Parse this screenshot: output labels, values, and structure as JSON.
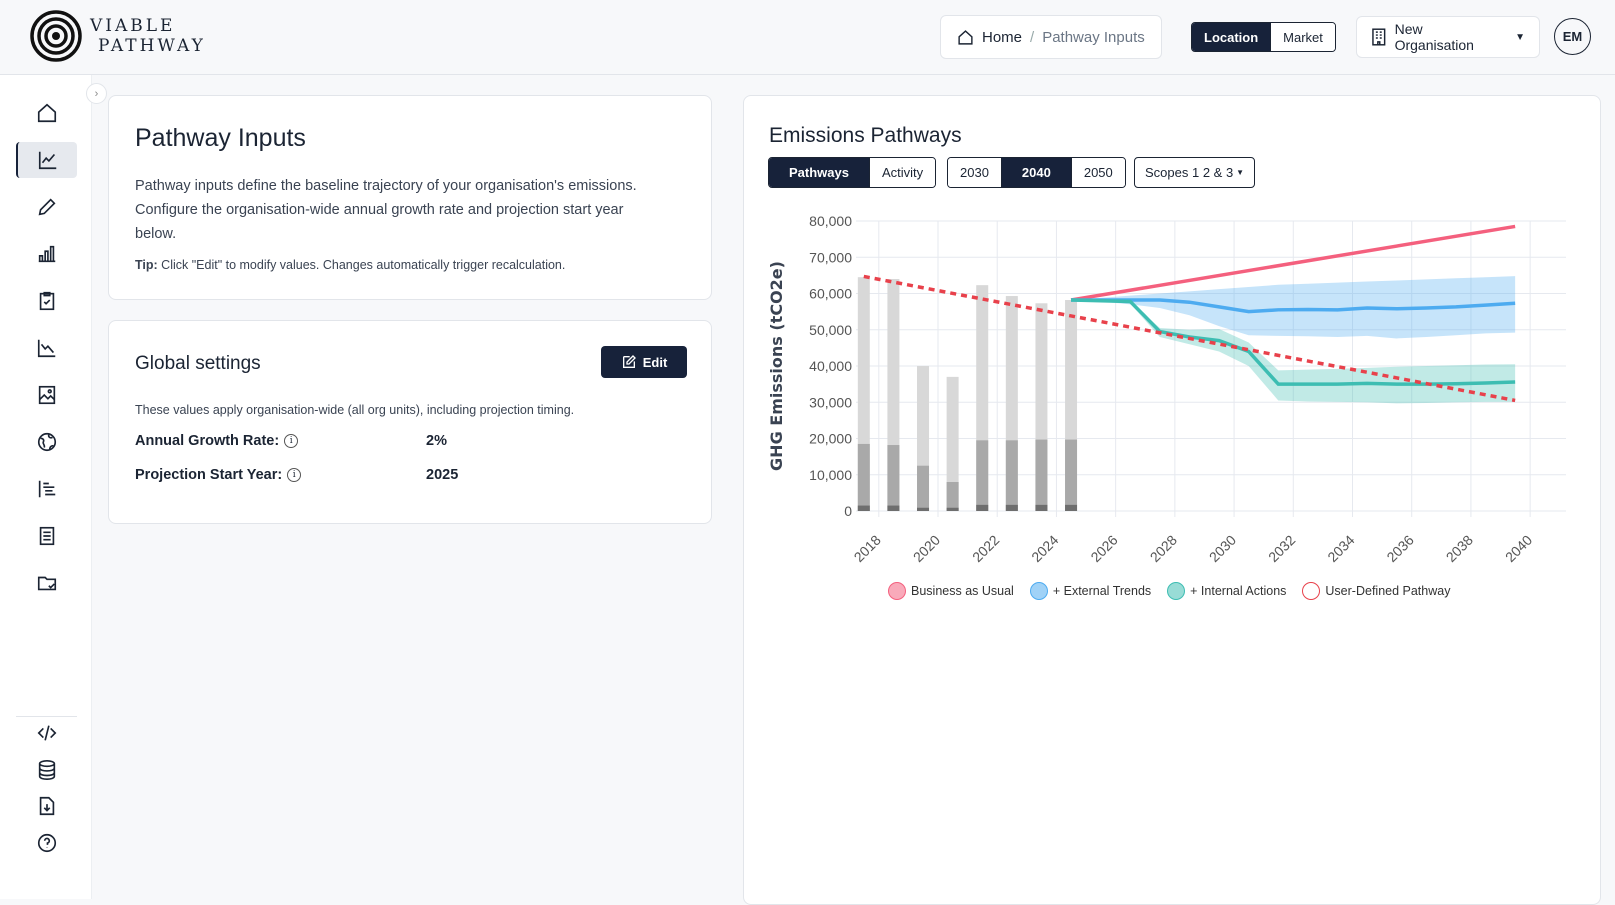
{
  "header": {
    "brand_line1": "VIABLE",
    "brand_line2": "PATHWAY",
    "breadcrumb": {
      "home": "Home",
      "current": "Pathway Inputs"
    },
    "basis_toggle": [
      "Location",
      "Market"
    ],
    "basis_active": "Location",
    "organisation": "New Organisation",
    "avatar_initials": "EM"
  },
  "sidebar": {
    "icons": [
      "home-icon",
      "line-chart-icon",
      "pencil-icon",
      "bar-chart-icon",
      "clipboard-check-icon",
      "trending-down-icon",
      "image-icon",
      "globe-icon",
      "list-indent-icon",
      "document-icon",
      "folder-check-icon",
      "code-icon",
      "database-icon",
      "file-download-icon",
      "help-icon"
    ],
    "active": "line-chart-icon"
  },
  "intro": {
    "title": "Pathway Inputs",
    "description": "Pathway inputs define the baseline trajectory of your organisation's emissions. Configure the organisation-wide annual growth rate and projection start year below.",
    "tip_label": "Tip:",
    "tip": " Click \"Edit\" to modify values. Changes automatically trigger recalculation."
  },
  "global": {
    "title": "Global settings",
    "edit_label": "Edit",
    "note": "These values apply organisation-wide (all org units), including projection timing.",
    "growth_label": "Annual Growth Rate:",
    "growth_value": "2%",
    "start_label": "Projection Start Year:",
    "start_value": "2025"
  },
  "chart_panel": {
    "title": "Emissions Pathways",
    "view_tabs": [
      "Pathways",
      "Activity"
    ],
    "view_active": "Pathways",
    "year_tabs": [
      "2030",
      "2040",
      "2050"
    ],
    "year_active": "2040",
    "scope_select": "Scopes 1 2 & 3"
  },
  "chart_data": {
    "type": "line",
    "title": "Emissions Pathways",
    "ylabel": "GHG Emissions (tCO2e)",
    "xlabel": "",
    "ylim": [
      0,
      80000
    ],
    "yticks": [
      "0",
      "10,000",
      "20,000",
      "30,000",
      "40,000",
      "50,000",
      "60,000",
      "70,000",
      "80,000"
    ],
    "x": [
      2018,
      2019,
      2020,
      2021,
      2022,
      2023,
      2024,
      2025,
      2026,
      2027,
      2028,
      2029,
      2030,
      2031,
      2032,
      2033,
      2034,
      2035,
      2036,
      2037,
      2038,
      2039,
      2040
    ],
    "xticks": [
      "2018",
      "2020",
      "2022",
      "2024",
      "2026",
      "2028",
      "2030",
      "2032",
      "2034",
      "2036",
      "2038",
      "2040"
    ],
    "historical_bars": {
      "years": [
        2018,
        2019,
        2020,
        2021,
        2022,
        2023,
        2024,
        2025
      ],
      "total": [
        64500,
        64000,
        40000,
        37000,
        62300,
        59300,
        57300,
        58200
      ],
      "scope2_and_1": [
        18500,
        18200,
        12500,
        8000,
        19500,
        19500,
        19700,
        19700
      ],
      "scope1": [
        1500,
        1500,
        900,
        900,
        1700,
        1700,
        1700,
        1700
      ]
    },
    "series": [
      {
        "name": "Business as Usual",
        "color": "#f4607e",
        "x": [
          2025,
          2040
        ],
        "values": [
          58200,
          78500
        ]
      },
      {
        "name": "+ External Trends",
        "color": "#4dabf0",
        "x": [
          2025,
          2026,
          2027,
          2028,
          2029,
          2030,
          2031,
          2032,
          2033,
          2034,
          2035,
          2036,
          2037,
          2038,
          2039,
          2040
        ],
        "values": [
          58200,
          58200,
          58200,
          58200,
          57600,
          56300,
          55000,
          55500,
          55600,
          55500,
          56000,
          55800,
          56000,
          56300,
          56800,
          57300
        ],
        "band_upper": [
          58200,
          58800,
          59400,
          60000,
          60600,
          61200,
          61800,
          62400,
          62700,
          63000,
          63300,
          63600,
          63900,
          64200,
          64500,
          64800
        ],
        "band_lower": [
          58200,
          57800,
          57000,
          56000,
          54000,
          51000,
          48500,
          48300,
          48200,
          48000,
          48300,
          47600,
          48000,
          48500,
          49000,
          49200
        ]
      },
      {
        "name": "+ Internal Actions",
        "color": "#3dbdb2",
        "x": [
          2025,
          2026,
          2027,
          2028,
          2029,
          2030,
          2031,
          2032,
          2033,
          2034,
          2035,
          2036,
          2037,
          2038,
          2039,
          2040
        ],
        "values": [
          58200,
          58000,
          57800,
          49500,
          48000,
          47000,
          44000,
          35000,
          35000,
          35000,
          35200,
          35000,
          35000,
          35100,
          35300,
          35600
        ],
        "band_upper": [
          58200,
          58000,
          57800,
          50500,
          50000,
          50200,
          46500,
          38800,
          39000,
          39200,
          39500,
          39800,
          40000,
          40200,
          40400,
          40500
        ],
        "band_lower": [
          58200,
          57800,
          57200,
          48000,
          46000,
          44000,
          40000,
          30500,
          30200,
          30100,
          30000,
          29700,
          29800,
          30000,
          30100,
          30100
        ]
      },
      {
        "name": "User-Defined Pathway",
        "color": "#e8414b",
        "dashed": true,
        "x": [
          2018,
          2040
        ],
        "values": [
          64700,
          30500
        ]
      }
    ]
  }
}
